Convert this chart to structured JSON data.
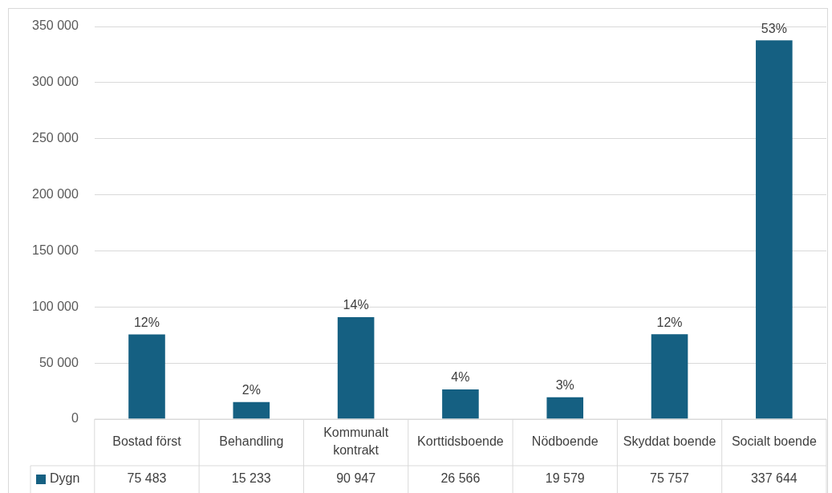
{
  "chart_data": {
    "type": "bar",
    "categories": [
      "Bostad först",
      "Behandling",
      "Kommunalt kontrakt",
      "Korttidsboende",
      "Nödboende",
      "Skyddat boende",
      "Socialt boende"
    ],
    "series": [
      {
        "name": "Dygn",
        "color": "#156082",
        "values": [
          75483,
          15233,
          90947,
          26566,
          19579,
          75757,
          337644
        ],
        "value_labels": [
          "75 483",
          "15 233",
          "90 947",
          "26 566",
          "19 579",
          "75 757",
          "337 644"
        ]
      }
    ],
    "annotations": [
      {
        "text": "12%",
        "x": "Bostad först",
        "y": 75483
      },
      {
        "text": "2%",
        "x": "Behandling",
        "y": 15233
      },
      {
        "text": "14%",
        "x": "Kommunalt kontrakt",
        "y": 90947
      },
      {
        "text": "4%",
        "x": "Korttidsboende",
        "y": 26566
      },
      {
        "text": "3%",
        "x": "Nödboende",
        "y": 19579
      },
      {
        "text": "12%",
        "x": "Skyddat boende",
        "y": 75757
      },
      {
        "text": "53%",
        "x": "Socialt boende",
        "y": 337644
      }
    ],
    "ylim": [
      0,
      350000
    ],
    "yticks": [
      0,
      50000,
      100000,
      150000,
      200000,
      250000,
      300000,
      350000
    ],
    "grid": "y"
  }
}
